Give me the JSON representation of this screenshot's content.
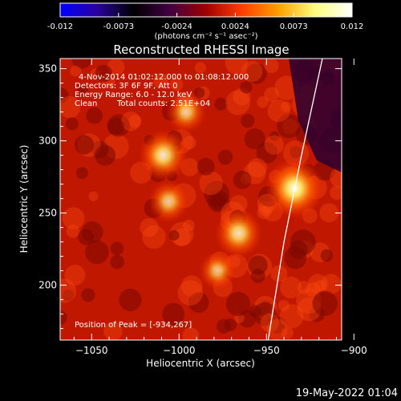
{
  "colorbar": {
    "ticks": [
      "-0.012",
      "-0.0073",
      "-0.0024",
      "0.0024",
      "0.0073",
      "0.012"
    ],
    "unit_label": "(photons cm⁻² s⁻¹ asec⁻²)",
    "stops": [
      "#0000ff",
      "#2a00a0",
      "#000000",
      "#400040",
      "#a00000",
      "#ff4000",
      "#ffa000",
      "#ffff80",
      "#ffffff"
    ]
  },
  "chart_data": {
    "type": "heatmap",
    "title": "Reconstructed RHESSI Image",
    "xlabel": "Heliocentric X (arcsec)",
    "ylabel": "Heliocentric Y (arcsec)",
    "xlim": [
      -1068,
      -907
    ],
    "ylim": [
      162,
      357
    ],
    "xticks": [
      -1050,
      -1000,
      -950,
      -900
    ],
    "yticks": [
      200,
      250,
      300,
      350
    ],
    "annotations": [
      "4-Nov-2014 01:02:12.000 to 01:08:12.000",
      "Detectors: 3F 6F 9F, Att 0",
      "Energy Range: 6.0 - 12.0 keV",
      "Clean",
      "Total counts: 2.51E+04"
    ],
    "peak_label": "Position of Peak = [-934,267]",
    "peak": [
      -934,
      267
    ],
    "sources": [
      {
        "x": -934,
        "y": 267,
        "intensity": 1.0
      },
      {
        "x": -1009,
        "y": 290,
        "intensity": 0.75
      },
      {
        "x": -966,
        "y": 236,
        "intensity": 0.7
      },
      {
        "x": -996,
        "y": 320,
        "intensity": 0.5
      },
      {
        "x": -1006,
        "y": 258,
        "intensity": 0.5
      },
      {
        "x": -978,
        "y": 210,
        "intensity": 0.4
      }
    ],
    "limb_points": [
      [
        -949,
        162
      ],
      [
        -940,
        230
      ],
      [
        -930,
        290
      ],
      [
        -918,
        357
      ]
    ]
  },
  "footer_date": "19-May-2022 01:04"
}
